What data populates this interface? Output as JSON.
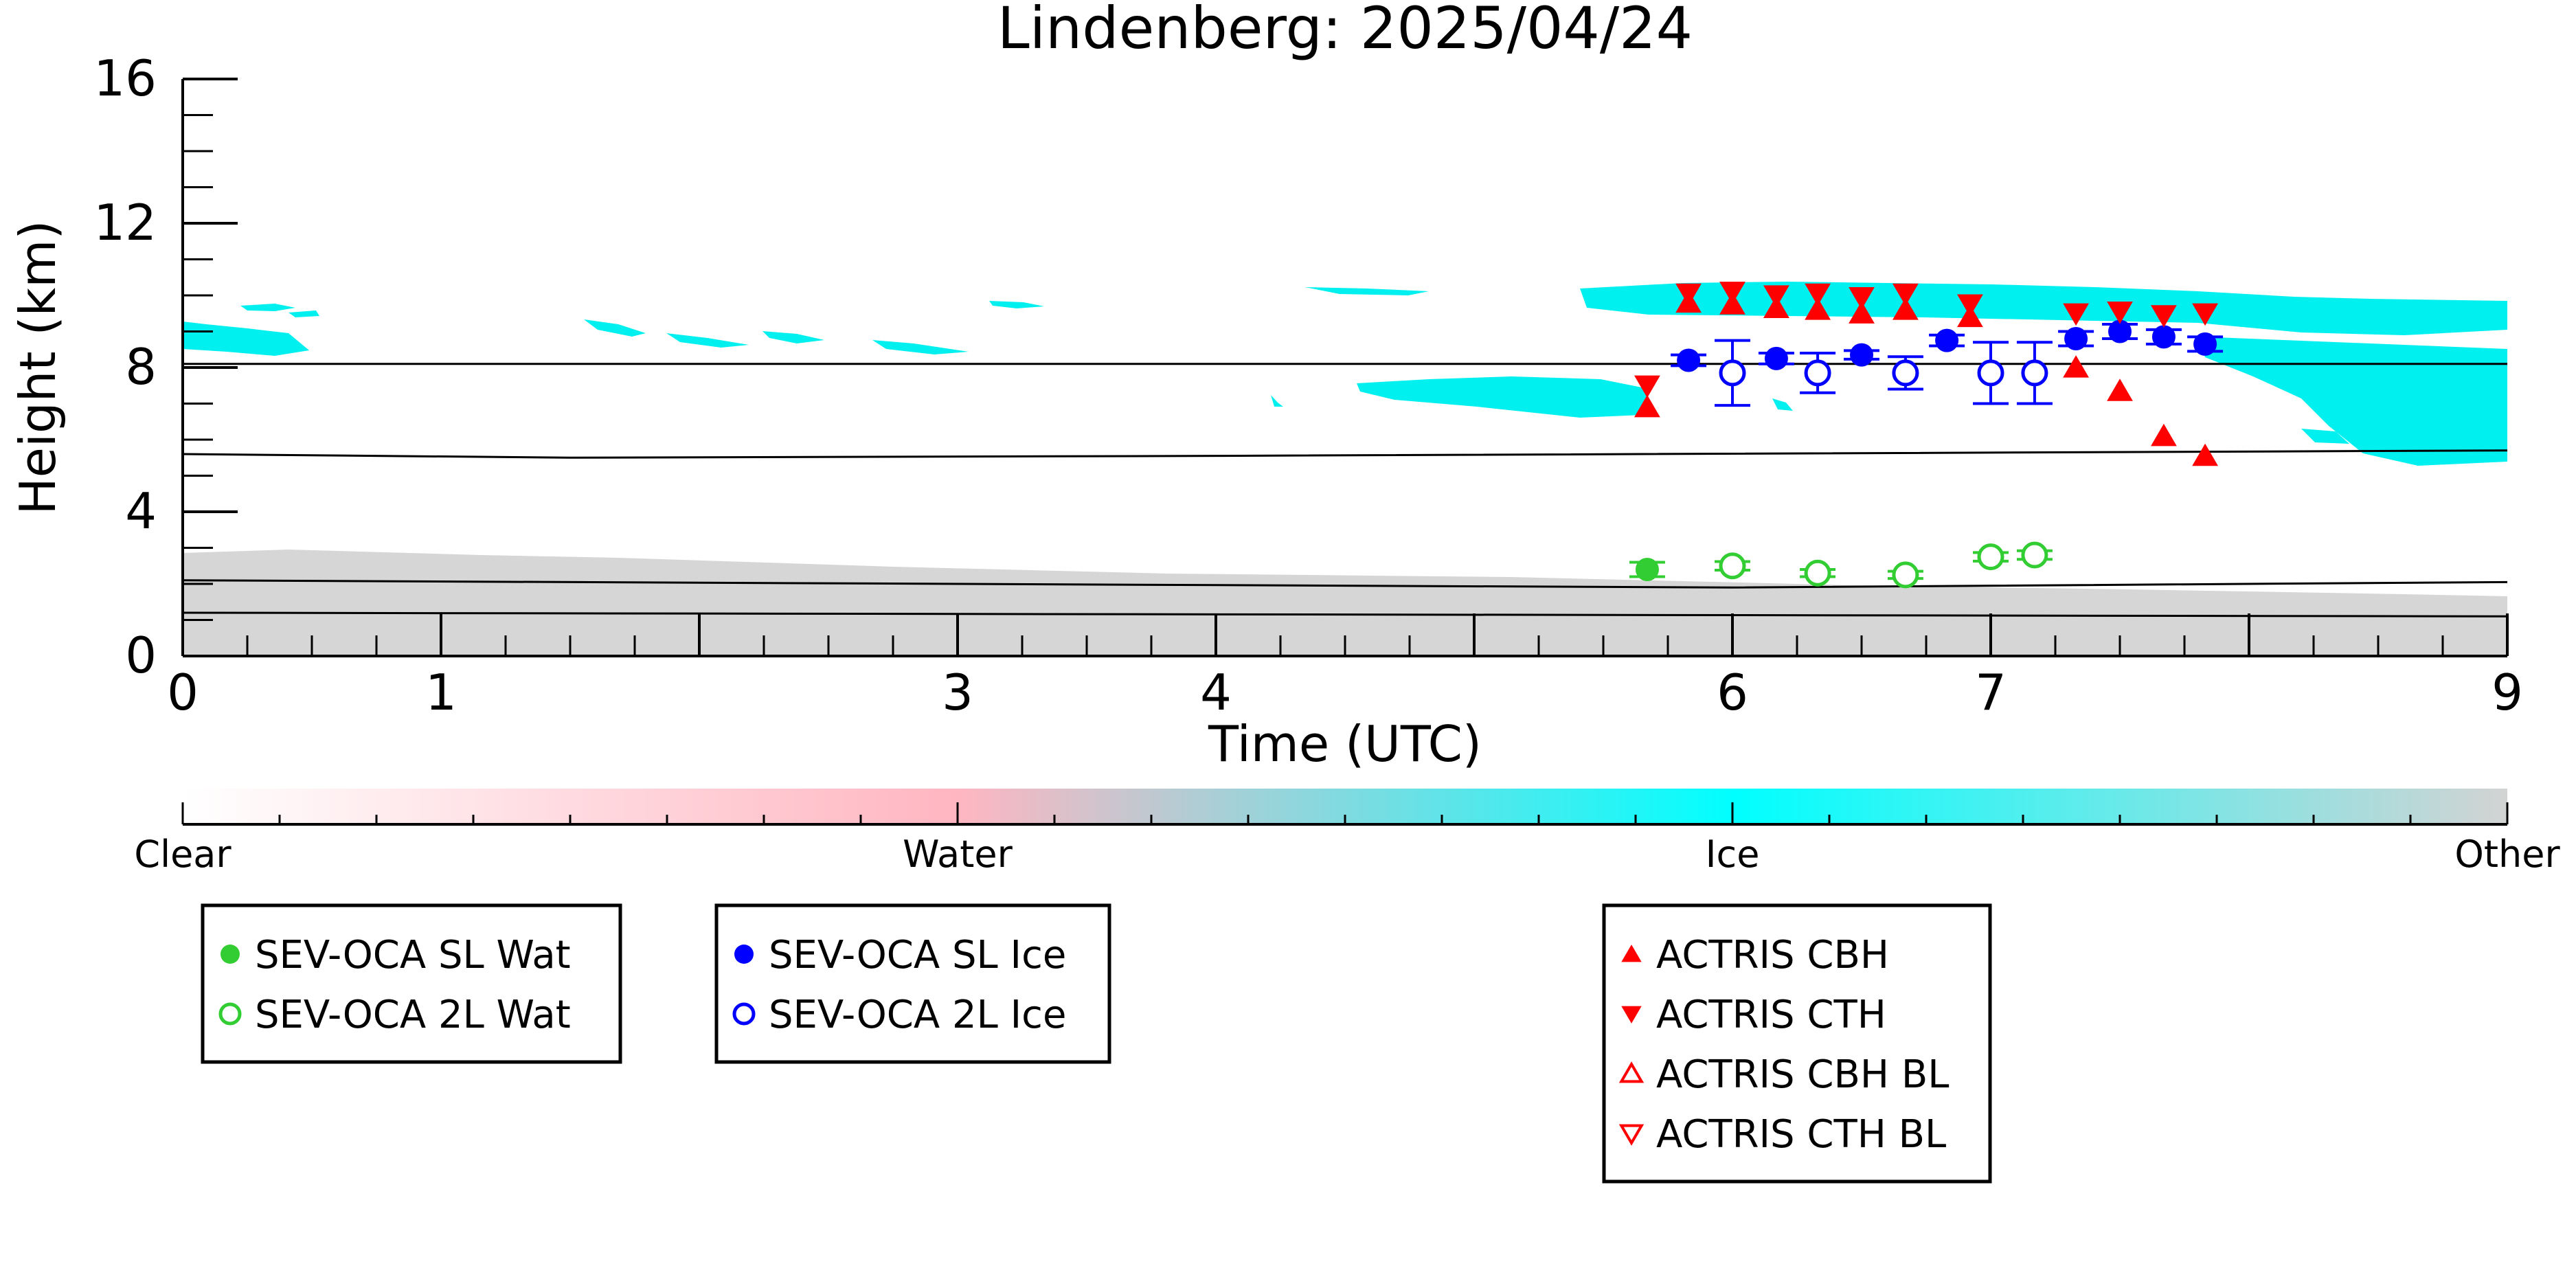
{
  "chart_data": {
    "type": "scatter",
    "title": "Lindenberg: 2025/04/24",
    "xlabel": "Time (UTC)",
    "ylabel": "Height (km)",
    "x_ticks": [
      {
        "value": 0,
        "label": "0"
      },
      {
        "value": 1,
        "label": "1"
      },
      {
        "value": 3,
        "label": "3"
      },
      {
        "value": 4,
        "label": "4"
      },
      {
        "value": 6,
        "label": "6"
      },
      {
        "value": 7,
        "label": "7"
      },
      {
        "value": 9,
        "label": "9"
      }
    ],
    "y_ticks": [
      {
        "value": 0,
        "label": "0"
      },
      {
        "value": 4,
        "label": "4"
      },
      {
        "value": 8,
        "label": "8"
      },
      {
        "value": 12,
        "label": "12"
      },
      {
        "value": 16,
        "label": "16"
      }
    ],
    "xlim": [
      0,
      9
    ],
    "ylim": [
      0,
      16
    ],
    "colorbar": {
      "labels": [
        "Clear",
        "Water",
        "Ice",
        "Other"
      ],
      "colors": [
        "#ffffff",
        "#ffb6c1",
        "#00ffff",
        "#d3d3d3"
      ]
    },
    "colors": {
      "water": "#32cd32",
      "ice": "#0000ff",
      "actris": "#ff0000",
      "ice_mask": "#00f0f0",
      "other_mask": "#d3d3d3"
    },
    "reference_lines": [
      {
        "x": [
          0,
          1.5,
          9
        ],
        "y": [
          8.1,
          8.1,
          8.1
        ]
      },
      {
        "x": [
          0,
          1.5,
          4,
          9
        ],
        "y": [
          5.6,
          5.5,
          5.55,
          5.7
        ]
      },
      {
        "x": [
          0,
          3,
          6,
          9
        ],
        "y": [
          2.1,
          2.0,
          1.9,
          2.05
        ]
      },
      {
        "x": [
          0,
          9
        ],
        "y": [
          1.2,
          1.1
        ]
      }
    ],
    "series": [
      {
        "name": "SEV-OCA SL Wat",
        "marker": "filled-circle",
        "color": "#32cd32",
        "points": [
          {
            "x": 5.67,
            "y": 2.4,
            "err": 0.2
          }
        ]
      },
      {
        "name": "SEV-OCA 2L Wat",
        "marker": "open-circle",
        "color": "#32cd32",
        "points": [
          {
            "x": 6.0,
            "y": 2.5,
            "err": 0.12
          },
          {
            "x": 6.33,
            "y": 2.3,
            "err": 0.1
          },
          {
            "x": 6.67,
            "y": 2.25,
            "err": 0.1
          },
          {
            "x": 7.0,
            "y": 2.75,
            "err": 0.12
          },
          {
            "x": 7.17,
            "y": 2.8,
            "err": 0.12
          }
        ]
      },
      {
        "name": "SEV-OCA SL Ice",
        "marker": "filled-circle",
        "color": "#0000ff",
        "points": [
          {
            "x": 5.83,
            "y": 8.2,
            "err": 0.15
          },
          {
            "x": 6.17,
            "y": 8.25,
            "err": 0.15
          },
          {
            "x": 6.5,
            "y": 8.35,
            "err": 0.12
          },
          {
            "x": 6.83,
            "y": 8.75,
            "err": 0.15
          },
          {
            "x": 7.33,
            "y": 8.8,
            "err": 0.2
          },
          {
            "x": 7.5,
            "y": 9.0,
            "err": 0.2
          },
          {
            "x": 7.67,
            "y": 8.85,
            "err": 0.2
          },
          {
            "x": 7.83,
            "y": 8.65,
            "err": 0.2
          }
        ]
      },
      {
        "name": "SEV-OCA 2L Ice",
        "marker": "open-circle",
        "color": "#0000ff",
        "points": [
          {
            "x": 6.0,
            "y": 7.85,
            "err": 0.9
          },
          {
            "x": 6.33,
            "y": 7.85,
            "err": 0.55
          },
          {
            "x": 6.67,
            "y": 7.85,
            "err": 0.45
          },
          {
            "x": 7.0,
            "y": 7.85,
            "err": 0.85
          },
          {
            "x": 7.17,
            "y": 7.85,
            "err": 0.85
          }
        ]
      },
      {
        "name": "ACTRIS CBH",
        "marker": "filled-up-triangle",
        "color": "#ff0000",
        "points": [
          {
            "x": 5.67,
            "y": 6.9
          },
          {
            "x": 5.83,
            "y": 9.8
          },
          {
            "x": 6.0,
            "y": 9.75
          },
          {
            "x": 6.17,
            "y": 9.65
          },
          {
            "x": 6.33,
            "y": 9.6
          },
          {
            "x": 6.5,
            "y": 9.5
          },
          {
            "x": 6.67,
            "y": 9.6
          },
          {
            "x": 6.92,
            "y": 9.4
          },
          {
            "x": 7.33,
            "y": 8.0
          },
          {
            "x": 7.5,
            "y": 7.35
          },
          {
            "x": 7.67,
            "y": 6.1
          },
          {
            "x": 7.83,
            "y": 5.55
          }
        ]
      },
      {
        "name": "ACTRIS CTH",
        "marker": "filled-down-triangle",
        "color": "#ff0000",
        "points": [
          {
            "x": 5.67,
            "y": 7.5
          },
          {
            "x": 5.83,
            "y": 10.05
          },
          {
            "x": 6.0,
            "y": 10.1
          },
          {
            "x": 6.17,
            "y": 10.0
          },
          {
            "x": 6.33,
            "y": 10.05
          },
          {
            "x": 6.5,
            "y": 9.95
          },
          {
            "x": 6.67,
            "y": 10.05
          },
          {
            "x": 6.92,
            "y": 9.75
          },
          {
            "x": 7.33,
            "y": 9.5
          },
          {
            "x": 7.5,
            "y": 9.55
          },
          {
            "x": 7.67,
            "y": 9.45
          },
          {
            "x": 7.83,
            "y": 9.5
          }
        ]
      },
      {
        "name": "ACTRIS CBH BL",
        "marker": "open-up-triangle",
        "color": "#ff0000",
        "points": []
      },
      {
        "name": "ACTRIS CTH BL",
        "marker": "open-down-triangle",
        "color": "#ff0000",
        "points": []
      }
    ],
    "legend_groups": [
      [
        "SEV-OCA SL Wat",
        "SEV-OCA 2L Wat"
      ],
      [
        "SEV-OCA SL Ice",
        "SEV-OCA 2L Ice"
      ],
      [
        "ACTRIS CBH",
        "ACTRIS CTH",
        "ACTRIS CBH BL",
        "ACTRIS CTH BL"
      ]
    ]
  }
}
